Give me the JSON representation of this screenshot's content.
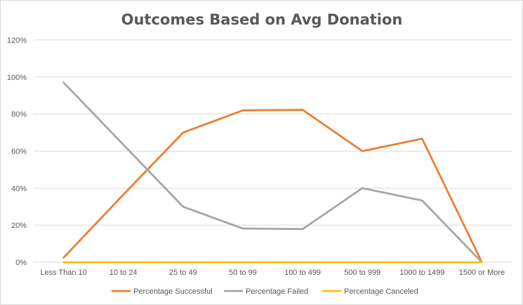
{
  "chart_data": {
    "type": "line",
    "title": "Outcomes Based on Avg Donation",
    "xlabel": "",
    "ylabel": "",
    "categories": [
      "Less Than 10",
      "10 to 24",
      "25 to 49",
      "50 to 99",
      "100 to 499",
      "500 to 999",
      "1000 to 1499",
      "1500 or More"
    ],
    "y_ticks": [
      "0%",
      "20%",
      "40%",
      "60%",
      "80%",
      "100%",
      "120%"
    ],
    "ylim": [
      0,
      120
    ],
    "grid": true,
    "legend_position": "bottom",
    "series": [
      {
        "name": "Percentage Successful",
        "color": "#ed7d31",
        "values": [
          2.5,
          36.5,
          70,
          82,
          82.3,
          60,
          66.7,
          0
        ]
      },
      {
        "name": "Percentage Failed",
        "color": "#a5a5a5",
        "values": [
          97,
          63.5,
          30,
          18.2,
          17.9,
          40,
          33.3,
          0
        ]
      },
      {
        "name": "Percentage Canceled",
        "color": "#ffc000",
        "values": [
          0,
          0,
          0,
          0,
          0,
          0,
          0,
          0
        ]
      }
    ]
  }
}
